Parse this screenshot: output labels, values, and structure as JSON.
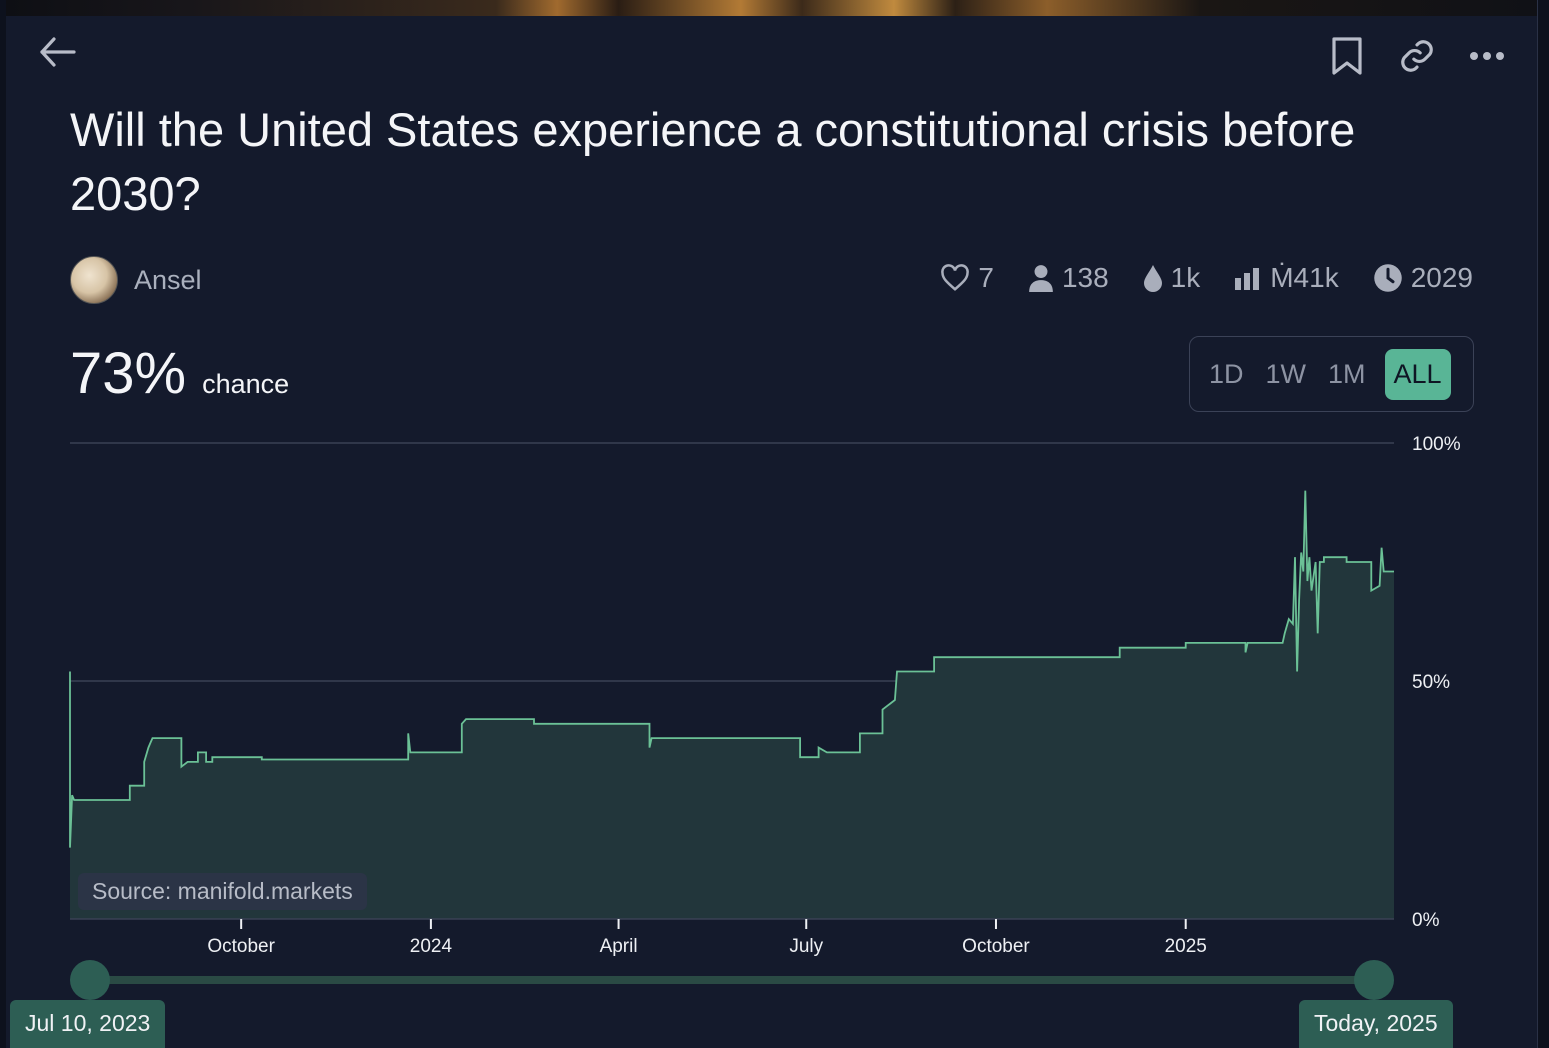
{
  "header": {
    "back_icon": "arrow-left-icon",
    "bookmark_icon": "bookmark-icon",
    "link_icon": "link-icon",
    "more_icon": "more-horizontal-icon"
  },
  "market": {
    "title": "Will the United States experience a constitutional crisis before 2030?",
    "author": "Ansel",
    "stats": {
      "likes": "7",
      "traders": "138",
      "liquidity": "1k",
      "volume": "Ṁ41k",
      "close_year": "2029"
    },
    "probability": "73%",
    "probability_label": "chance"
  },
  "range_tabs": [
    "1D",
    "1W",
    "1M",
    "ALL"
  ],
  "active_range": "ALL",
  "source_label": "Source: manifold.markets",
  "range_start_label": "Jul 10, 2023",
  "range_end_label": "Today, 2025",
  "colors": {
    "background": "#141a2c",
    "line": "#6bc196",
    "area": "#22363b",
    "accent": "#59b596"
  },
  "chart_data": {
    "type": "area",
    "y_tick_labels": [
      "100%",
      "50%",
      "0%"
    ],
    "ylim": [
      0,
      100
    ],
    "x_tick_labels": [
      "October",
      "2024",
      "April",
      "July",
      "October",
      "2025"
    ],
    "x_tick_dates": [
      "2023-10-01",
      "2024-01-01",
      "2024-04-01",
      "2024-07-01",
      "2024-10-01",
      "2025-01-01"
    ],
    "xlim": [
      "2023-07-10",
      "2025-04-12"
    ],
    "grid": "horizontal",
    "series": [
      {
        "points": [
          [
            "2023-07-10",
            52
          ],
          [
            "2023-07-10",
            15
          ],
          [
            "2023-07-11",
            26
          ],
          [
            "2023-07-12",
            25
          ],
          [
            "2023-08-08",
            25
          ],
          [
            "2023-08-08",
            28
          ],
          [
            "2023-08-15",
            28
          ],
          [
            "2023-08-15",
            33
          ],
          [
            "2023-08-17",
            36
          ],
          [
            "2023-08-18",
            37
          ],
          [
            "2023-08-19",
            38
          ],
          [
            "2023-09-02",
            38
          ],
          [
            "2023-09-02",
            32
          ],
          [
            "2023-09-05",
            33
          ],
          [
            "2023-09-10",
            33
          ],
          [
            "2023-09-10",
            35
          ],
          [
            "2023-09-14",
            35
          ],
          [
            "2023-09-14",
            33
          ],
          [
            "2023-09-17",
            33
          ],
          [
            "2023-09-17",
            34
          ],
          [
            "2023-10-11",
            34
          ],
          [
            "2023-10-11",
            33.5
          ],
          [
            "2023-12-21",
            33.5
          ],
          [
            "2023-12-21",
            39
          ],
          [
            "2023-12-22",
            35
          ],
          [
            "2024-01-16",
            35
          ],
          [
            "2024-01-16",
            41
          ],
          [
            "2024-01-18",
            42
          ],
          [
            "2024-02-20",
            42
          ],
          [
            "2024-02-20",
            41
          ],
          [
            "2024-04-16",
            41
          ],
          [
            "2024-04-16",
            36
          ],
          [
            "2024-04-17",
            38
          ],
          [
            "2024-06-28",
            38
          ],
          [
            "2024-06-28",
            34
          ],
          [
            "2024-07-07",
            34
          ],
          [
            "2024-07-07",
            36
          ],
          [
            "2024-07-11",
            35
          ],
          [
            "2024-07-27",
            35
          ],
          [
            "2024-07-27",
            39
          ],
          [
            "2024-08-07",
            39
          ],
          [
            "2024-08-07",
            44
          ],
          [
            "2024-08-13",
            46
          ],
          [
            "2024-08-14",
            52
          ],
          [
            "2024-09-01",
            52
          ],
          [
            "2024-09-01",
            55
          ],
          [
            "2024-11-30",
            55
          ],
          [
            "2024-11-30",
            57
          ],
          [
            "2025-01-01",
            57
          ],
          [
            "2025-01-01",
            58
          ],
          [
            "2025-01-30",
            58
          ],
          [
            "2025-01-30",
            56
          ],
          [
            "2025-01-31",
            58
          ],
          [
            "2025-02-17",
            58
          ],
          [
            "2025-02-18",
            60
          ],
          [
            "2025-02-20",
            63
          ],
          [
            "2025-02-22",
            62
          ],
          [
            "2025-02-23",
            76
          ],
          [
            "2025-02-24",
            52
          ],
          [
            "2025-02-25",
            67
          ],
          [
            "2025-02-26",
            77
          ],
          [
            "2025-02-27",
            73
          ],
          [
            "2025-02-28",
            90
          ],
          [
            "2025-03-01",
            71
          ],
          [
            "2025-03-02",
            76
          ],
          [
            "2025-03-03",
            69
          ],
          [
            "2025-03-05",
            75
          ],
          [
            "2025-03-06",
            60
          ],
          [
            "2025-03-07",
            75
          ],
          [
            "2025-03-09",
            75
          ],
          [
            "2025-03-09",
            76
          ],
          [
            "2025-03-20",
            76
          ],
          [
            "2025-03-20",
            75
          ],
          [
            "2025-04-01",
            75
          ],
          [
            "2025-04-01",
            69
          ],
          [
            "2025-04-05",
            70
          ],
          [
            "2025-04-06",
            78
          ],
          [
            "2025-04-07",
            73
          ],
          [
            "2025-04-09",
            73
          ],
          [
            "2025-04-12",
            73
          ]
        ]
      }
    ]
  }
}
